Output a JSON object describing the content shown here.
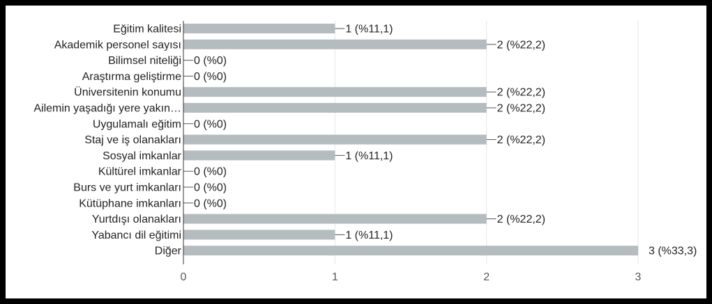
{
  "chart_data": {
    "type": "bar",
    "orientation": "horizontal",
    "categories": [
      "Eğitim kalitesi",
      "Akademik personel sayısı",
      "Bilimsel niteliği",
      "Araştırma geliştirme",
      "Üniversitenin konumu",
      "Ailemin yaşadığı yere yakın…",
      "Uygulamalı eğitim",
      "Staj ve iş olanakları",
      "Sosyal imkanlar",
      "Kültürel imkanlar",
      "Burs ve yurt imkanları",
      "Kütüphane imkanları",
      "Yurtdışı olanakları",
      "Yabancı dil eğitimi",
      "Diğer"
    ],
    "values": [
      1,
      2,
      0,
      0,
      2,
      2,
      0,
      2,
      1,
      0,
      0,
      0,
      2,
      1,
      3
    ],
    "value_labels": [
      "1 (%11,1)",
      "2 (%22,2)",
      "0 (%0)",
      "0 (%0)",
      "2 (%22,2)",
      "2 (%22,2)",
      "0 (%0)",
      "2 (%22,2)",
      "1 (%11,1)",
      "0 (%0)",
      "0 (%0)",
      "0 (%0)",
      "2 (%22,2)",
      "1 (%11,1)",
      "3 (%33,3)"
    ],
    "xlim": [
      0,
      3
    ],
    "xticks": [
      "0",
      "1",
      "2",
      "3"
    ],
    "grid": true,
    "bar_color": "#b5bcbf",
    "grid_color": "#e6e6e6",
    "axis_color": "#333333"
  }
}
